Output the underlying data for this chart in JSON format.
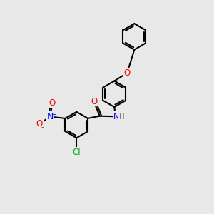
{
  "background_color": "#e8e8e8",
  "bond_color": "#000000",
  "bond_width": 1.5,
  "atom_colors": {
    "O": "#ff0000",
    "N": "#0000ff",
    "Cl": "#00aa00",
    "H": "#7f7f7f"
  },
  "font_size": 8.5
}
